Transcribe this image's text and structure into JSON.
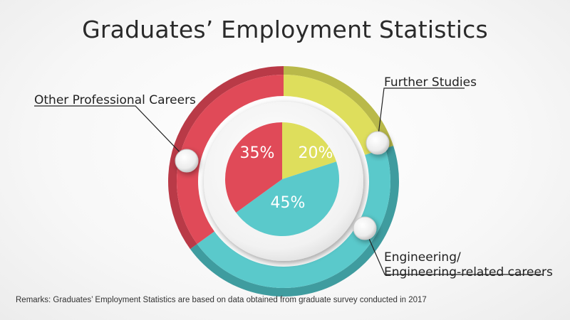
{
  "title": "Graduates’ Employment Statistics",
  "remarks": "Remarks: Graduates’ Employment Statistics are based on data obtained from graduate survey conducted in 2017",
  "chart_data": {
    "type": "pie",
    "title": "Graduates’ Employment Statistics",
    "slices": [
      {
        "key": "further",
        "label": "Further Studies",
        "value": 20,
        "value_label": "20%",
        "color": "#dede5c",
        "dark_color": "#b9b94a"
      },
      {
        "key": "engineering",
        "label_lines": [
          "Engineering/",
          "Engineering-related careers"
        ],
        "value": 45,
        "value_label": "45%",
        "color": "#5ac9cb",
        "dark_color": "#3f9c9f"
      },
      {
        "key": "other",
        "label": "Other Professional Careers",
        "value": 35,
        "value_label": "35%",
        "color": "#e04a58",
        "dark_color": "#b93a47"
      }
    ],
    "legend": "callout labels"
  }
}
